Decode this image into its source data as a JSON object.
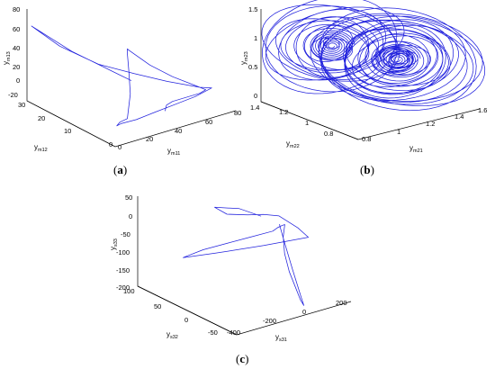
{
  "chart_data": [
    {
      "type": "line3d",
      "panel_label": "a",
      "xlabel": {
        "base": "y",
        "sub": "m11"
      },
      "ylabel": {
        "base": "y",
        "sub": "m12"
      },
      "zlabel": {
        "base": "y",
        "sub": "m13"
      },
      "x_ticks": [
        "0",
        "20",
        "40",
        "60",
        "80"
      ],
      "y_ticks": [
        "0",
        "10",
        "20",
        "30"
      ],
      "z_ticks": [
        "-20",
        "0",
        "20",
        "40",
        "60",
        "80"
      ],
      "xlim": [
        0,
        80
      ],
      "ylim": [
        0,
        30
      ],
      "zlim": [
        -20,
        80
      ],
      "series": [
        {
          "color": "#2222dd",
          "points": [
            [
              38,
              14,
              10
            ],
            [
              18,
              24,
              35
            ],
            [
              4,
              29,
              58
            ],
            [
              3,
              30,
              60
            ],
            [
              12,
              25,
              42
            ],
            [
              24,
              18,
              28
            ],
            [
              36,
              12,
              22
            ],
            [
              48,
              7,
              16
            ],
            [
              60,
              2,
              12
            ],
            [
              66,
              1,
              10
            ],
            [
              55,
              1,
              6
            ],
            [
              42,
              1,
              4
            ],
            [
              28,
              1,
              2
            ],
            [
              16,
              1,
              0
            ],
            [
              8,
              2,
              -2
            ],
            [
              5,
              2,
              -3
            ],
            [
              7,
              2,
              0
            ],
            [
              10,
              1,
              4
            ],
            [
              12,
              1,
              30
            ],
            [
              11,
              1,
              55
            ],
            [
              10,
              1,
              75
            ],
            [
              10,
              1,
              80
            ],
            [
              11,
              1,
              78
            ],
            [
              25,
              1,
              55
            ],
            [
              40,
              1,
              35
            ],
            [
              55,
              1,
              18
            ],
            [
              62,
              1,
              10
            ],
            [
              58,
              1,
              8
            ],
            [
              48,
              1,
              8
            ],
            [
              40,
              1,
              8
            ],
            [
              36,
              1,
              6
            ],
            [
              35,
              1,
              0
            ]
          ]
        }
      ]
    },
    {
      "type": "line3d",
      "panel_label": "b",
      "xlabel": {
        "base": "y",
        "sub": "m21"
      },
      "ylabel": {
        "base": "y",
        "sub": "m22"
      },
      "zlabel": {
        "base": "y",
        "sub": "m23"
      },
      "x_ticks": [
        "0.8",
        "1",
        "1.2",
        "1.4",
        "1.6"
      ],
      "y_ticks": [
        "0.8",
        "1",
        "1.2",
        "1.4"
      ],
      "z_ticks": [
        "0",
        "0.5",
        "1",
        "1.5"
      ],
      "xlim": [
        0.7,
        1.6
      ],
      "ylim": [
        0.7,
        1.4
      ],
      "zlim": [
        0,
        1.5
      ],
      "attractor": {
        "type": "double-scroll",
        "focus_left": [
          1.02,
          1.2,
          0.9
        ],
        "focus_right": [
          1.3,
          1.0,
          0.7
        ],
        "radius_range": [
          0.03,
          0.42
        ],
        "loops": 42
      }
    },
    {
      "type": "line3d",
      "panel_label": "c",
      "xlabel": {
        "base": "y",
        "sub": "s31"
      },
      "ylabel": {
        "base": "y",
        "sub": "s32"
      },
      "zlabel": {
        "base": "y",
        "sub": "s33"
      },
      "x_ticks": [
        "-400",
        "-200",
        "0",
        "200"
      ],
      "y_ticks": [
        "-50",
        "0",
        "50",
        "100"
      ],
      "z_ticks": [
        "-200",
        "-150",
        "-100",
        "-50",
        "0",
        "50"
      ],
      "xlim": [
        -400,
        200
      ],
      "ylim": [
        -50,
        100
      ],
      "zlim": [
        -200,
        50
      ],
      "series": [
        {
          "color": "#2222dd",
          "points": [
            [
              5,
              30,
              -5
            ],
            [
              -40,
              50,
              5
            ],
            [
              -100,
              70,
              0
            ],
            [
              -70,
              60,
              -15
            ],
            [
              -30,
              40,
              -5
            ],
            [
              0,
              25,
              5
            ],
            [
              30,
              10,
              10
            ],
            [
              60,
              -10,
              -10
            ],
            [
              80,
              -20,
              -30
            ],
            [
              -50,
              10,
              -60
            ],
            [
              -200,
              40,
              -85
            ],
            [
              -300,
              60,
              -100
            ],
            [
              -230,
              50,
              -80
            ],
            [
              -150,
              35,
              -60
            ],
            [
              -80,
              20,
              -40
            ],
            [
              -20,
              5,
              -20
            ],
            [
              -5,
              2,
              -10
            ],
            [
              10,
              0,
              -5
            ],
            [
              15,
              -3,
              0
            ],
            [
              0,
              -5,
              -30
            ],
            [
              -10,
              -10,
              -70
            ],
            [
              -20,
              -20,
              -110
            ],
            [
              -25,
              -30,
              -140
            ],
            [
              -30,
              -40,
              -170
            ],
            [
              -30,
              -45,
              -180
            ],
            [
              -28,
              -40,
              -160
            ],
            [
              -20,
              -25,
              -100
            ],
            [
              -10,
              -10,
              -40
            ],
            [
              0,
              0,
              -5
            ],
            [
              5,
              2,
              -2
            ]
          ]
        }
      ]
    }
  ]
}
